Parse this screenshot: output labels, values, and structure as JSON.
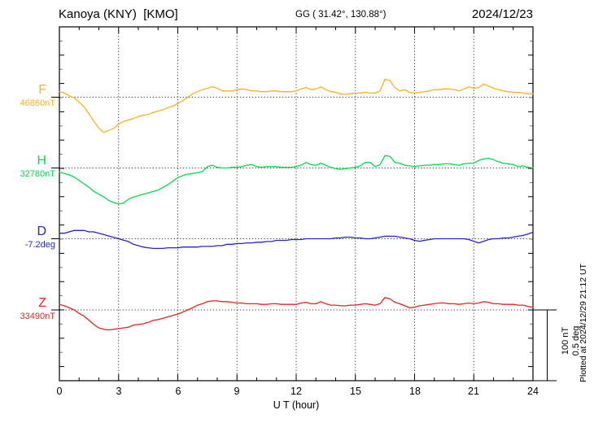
{
  "header": {
    "title": "Kanoya (KNY)  [KMO]",
    "coordinates": "GG ( 31.42°, 130.88°)",
    "date": "2024/12/23"
  },
  "axis": {
    "xlabel": "U T (hour)",
    "x_ticks": [
      "0",
      "3",
      "6",
      "9",
      "12",
      "15",
      "18",
      "21",
      "24"
    ]
  },
  "scale_bar": {
    "nt_label": "100 nT",
    "deg_label": "0.5 deg"
  },
  "footer": {
    "plotted_at": "Plotted at 2024/12/29 21:12 UT"
  },
  "chart_data": {
    "type": "line",
    "title": "Kanoya (KNY) magnetogram 2024/12/23",
    "x_unit": "UT hour",
    "x_range": [
      0,
      24
    ],
    "sample_step_hours": 0.25,
    "grid": "dotted vertical lines every 3 hours; dotted horizontal line at each component baseline",
    "scale": {
      "nT_per_division": 100,
      "deg_per_division": 0.5
    },
    "series": [
      {
        "name": "F",
        "label": "F",
        "baseline_label": "46860nT",
        "baseline_value": 46860,
        "unit": "nT",
        "color": "#ffb022",
        "offsets": [
          8,
          6,
          2,
          -1,
          -7,
          -14,
          -24,
          -35,
          -45,
          -51,
          -48,
          -45,
          -39,
          -35,
          -33,
          -31,
          -28,
          -26,
          -25,
          -22,
          -20,
          -18,
          -15,
          -13,
          -9,
          -5,
          0,
          5,
          8,
          11,
          13,
          15,
          13,
          9,
          9,
          9,
          11,
          12,
          11,
          9,
          9,
          8,
          8,
          9,
          9,
          8,
          8,
          8,
          9,
          12,
          14,
          11,
          12,
          15,
          11,
          8,
          7,
          5,
          4,
          5,
          6,
          6,
          7,
          6,
          6,
          9,
          26,
          24,
          14,
          9,
          11,
          7,
          6,
          7,
          8,
          9,
          11,
          11,
          12,
          12,
          11,
          9,
          12,
          15,
          13,
          14,
          19,
          16,
          13,
          11,
          9,
          8,
          7,
          7,
          6,
          5,
          5
        ]
      },
      {
        "name": "H",
        "label": "H",
        "baseline_label": "32780nT",
        "baseline_value": 32780,
        "unit": "nT",
        "color": "#00dd50",
        "offsets": [
          -6,
          -8,
          -10,
          -13,
          -18,
          -23,
          -28,
          -34,
          -38,
          -42,
          -47,
          -50,
          -52,
          -51,
          -45,
          -42,
          -40,
          -38,
          -36,
          -34,
          -32,
          -28,
          -24,
          -19,
          -14,
          -11,
          -9,
          -8,
          -7,
          -5,
          2,
          4,
          1,
          0,
          0,
          1,
          1,
          2,
          4,
          5,
          2,
          1,
          2,
          2,
          2,
          1,
          1,
          1,
          2,
          4,
          8,
          5,
          4,
          7,
          4,
          1,
          -1,
          -2,
          -1,
          0,
          1,
          3,
          8,
          8,
          2,
          5,
          18,
          17,
          8,
          7,
          4,
          3,
          2,
          3,
          4,
          4,
          5,
          5,
          6,
          6,
          5,
          4,
          6,
          7,
          7,
          11,
          13,
          14,
          12,
          9,
          7,
          6,
          5,
          2,
          3,
          1,
          0
        ]
      },
      {
        "name": "D",
        "label": "D",
        "baseline_label": "-7.2deg",
        "baseline_value": -7.2,
        "unit": "deg",
        "color": "#2525cc",
        "offsets": [
          0.04,
          0.04,
          0.05,
          0.06,
          0.06,
          0.06,
          0.05,
          0.05,
          0.04,
          0.03,
          0.02,
          0.01,
          0,
          -0.01,
          -0.02,
          -0.04,
          -0.05,
          -0.06,
          -0.065,
          -0.07,
          -0.07,
          -0.07,
          -0.065,
          -0.065,
          -0.065,
          -0.06,
          -0.06,
          -0.06,
          -0.06,
          -0.055,
          -0.055,
          -0.055,
          -0.05,
          -0.05,
          -0.04,
          -0.04,
          -0.035,
          -0.035,
          -0.03,
          -0.03,
          -0.025,
          -0.025,
          -0.02,
          -0.02,
          -0.012,
          -0.012,
          -0.012,
          -0.006,
          -0.006,
          -0.006,
          0,
          0,
          0,
          0,
          0,
          0,
          0.006,
          0.006,
          0.012,
          0.012,
          0.006,
          0.006,
          0,
          0,
          0.006,
          0.012,
          0.018,
          0.018,
          0.018,
          0.012,
          0.006,
          0,
          -0.012,
          -0.018,
          -0.012,
          -0.006,
          0,
          0,
          0,
          0,
          0,
          0,
          0,
          -0.006,
          -0.018,
          -0.03,
          -0.018,
          -0.006,
          0,
          0,
          0.006,
          0.006,
          0.012,
          0.018,
          0.024,
          0.035,
          0.047
        ]
      },
      {
        "name": "Z",
        "label": "Z",
        "baseline_label": "33490nT",
        "baseline_value": 33490,
        "unit": "nT",
        "color": "#ee2222",
        "offsets": [
          8,
          6,
          3,
          0,
          -5,
          -9,
          -15,
          -21,
          -26,
          -28,
          -29,
          -28,
          -27,
          -26,
          -25,
          -22,
          -21,
          -20,
          -18,
          -15,
          -14,
          -12,
          -10,
          -8,
          -6,
          -3,
          0,
          3,
          7,
          9,
          12,
          13,
          13,
          12,
          12,
          11,
          10,
          10,
          9,
          9,
          9,
          8,
          8,
          9,
          9,
          8,
          8,
          8,
          8,
          10,
          11,
          9,
          9,
          12,
          9,
          7,
          7,
          6,
          6,
          7,
          7,
          8,
          9,
          8,
          7,
          9,
          18,
          16,
          11,
          9,
          6,
          3,
          4,
          6,
          7,
          8,
          9,
          10,
          10,
          9,
          9,
          8,
          9,
          10,
          9,
          10,
          12,
          11,
          9,
          9,
          8,
          8,
          8,
          7,
          7,
          5,
          4
        ]
      }
    ]
  }
}
